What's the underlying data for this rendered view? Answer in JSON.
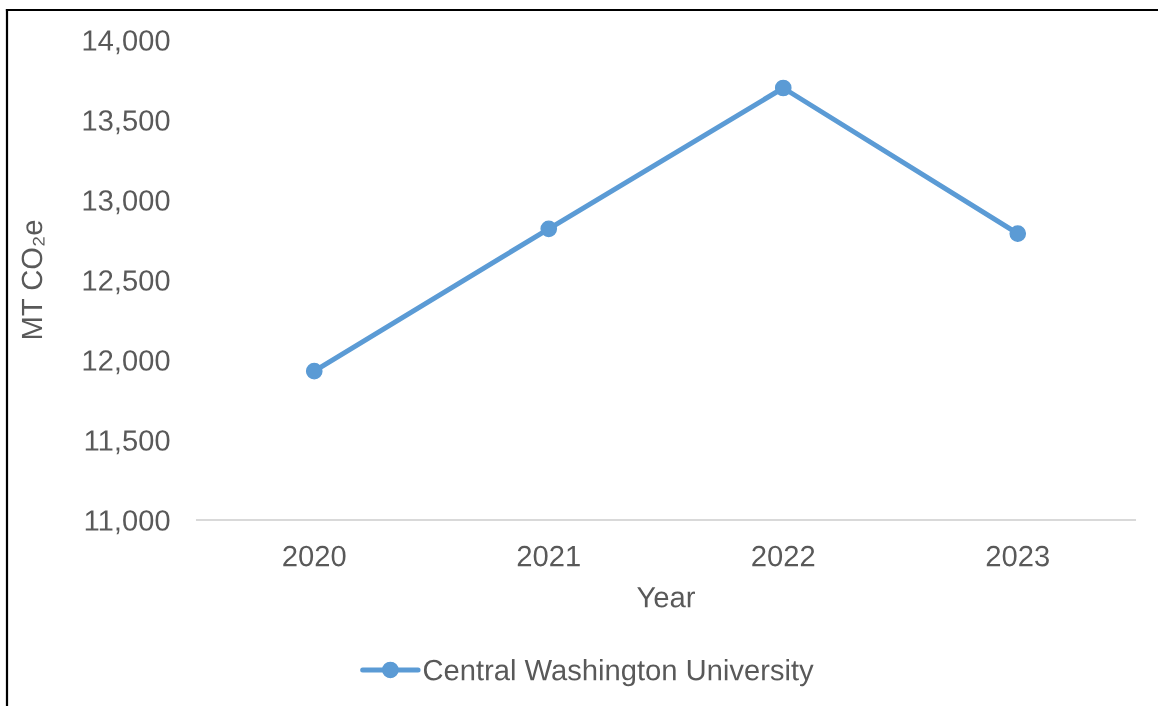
{
  "chart_data": {
    "type": "line",
    "xlabel": "Year",
    "ylabel": "MT CO₂e",
    "categories": [
      "2020",
      "2021",
      "2022",
      "2023"
    ],
    "series": [
      {
        "name": "Central Washington University",
        "color": "#5b9bd5",
        "values": [
          11930,
          12820,
          13700,
          12790
        ]
      }
    ],
    "ylim": [
      11000,
      14000
    ],
    "yticks": [
      {
        "value": 11000,
        "label": "11,000"
      },
      {
        "value": 11500,
        "label": "11,500"
      },
      {
        "value": 12000,
        "label": "12,000"
      },
      {
        "value": 12500,
        "label": "12,500"
      },
      {
        "value": 13000,
        "label": "13,000"
      },
      {
        "value": 13500,
        "label": "13,500"
      },
      {
        "value": 14000,
        "label": "14,000"
      }
    ],
    "marker": "circle",
    "line_style": "solid",
    "legend": "bottom"
  }
}
